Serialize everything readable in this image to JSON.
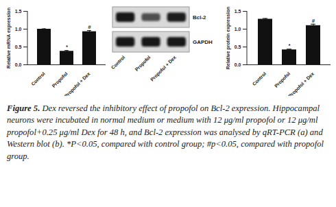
{
  "chart_data": [
    {
      "type": "bar",
      "categories": [
        "Control",
        "Propofol",
        "Propofol + Dex"
      ],
      "values": [
        1.0,
        0.38,
        0.93
      ],
      "errors": [
        0.01,
        0.02,
        0.03
      ],
      "annotations": [
        null,
        "*",
        "#"
      ],
      "y_label": "Relative mRNA expression",
      "ylim": [
        0,
        1.5
      ],
      "yticks": [
        {
          "value": 0,
          "label": "0.0"
        },
        0.5,
        {
          "value": 1,
          "label": "1.0"
        },
        1.5
      ],
      "color": "#111111"
    },
    {
      "type": "bar",
      "categories": [
        "Control",
        "Propofol",
        "Propofol + Dex"
      ],
      "values": [
        1.28,
        0.42,
        1.1
      ],
      "errors": [
        0.02,
        0.02,
        0.04
      ],
      "annotations": [
        null,
        "*",
        "#"
      ],
      "y_label": "Relative protein expression",
      "ylim": [
        0,
        1.5
      ],
      "yticks": [
        {
          "value": 0,
          "label": "0.0"
        },
        0.5,
        {
          "value": 1,
          "label": "1.0"
        },
        1.5
      ],
      "color": "#111111"
    }
  ],
  "blot": {
    "bands": [
      "Bcl-2",
      "GAPDH"
    ],
    "lanes": [
      "Control",
      "Propofol",
      "Propofol + Dex"
    ]
  },
  "caption": {
    "label": "Figure 5.",
    "text": "Dex reversed the inhibitory effect of propofol on Bcl-2 expression. Hippocampal neurons were incubated in normal medium or medium with 12 μg/ml propofol or 12 μg/ml propofol+0.25 μg/ml Dex for 48 h, and Bcl-2 expression was analysed by qRT-PCR (a) and Western blot (b). *P<0.05, compared with control group; #p<0.05, compared with propofol group."
  }
}
